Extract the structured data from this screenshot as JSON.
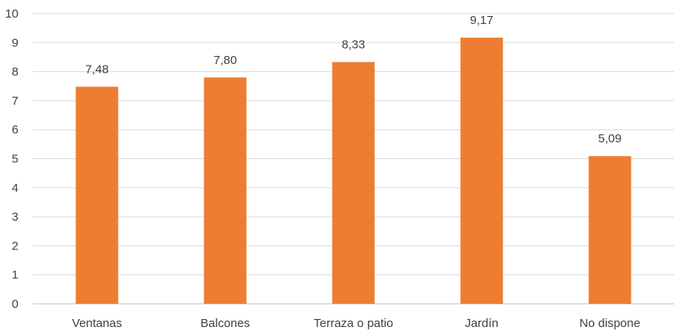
{
  "chart_data": {
    "type": "bar",
    "categories": [
      "Ventanas",
      "Balcones",
      "Terraza o patio",
      "Jardín",
      "No dispone"
    ],
    "values": [
      7.48,
      7.8,
      8.33,
      9.17,
      5.09
    ],
    "data_labels": [
      "7,48",
      "7,80",
      "8,33",
      "9,17",
      "5,09"
    ],
    "title": "",
    "xlabel": "",
    "ylabel": "",
    "ylim": [
      0,
      10
    ],
    "y_ticks": [
      0,
      1,
      2,
      3,
      4,
      5,
      6,
      7,
      8,
      9,
      10
    ],
    "grid": true,
    "legend": "none",
    "colors": {
      "bar": "#ED7D31",
      "grid": "#d9d9d9",
      "text": "#404040"
    }
  }
}
